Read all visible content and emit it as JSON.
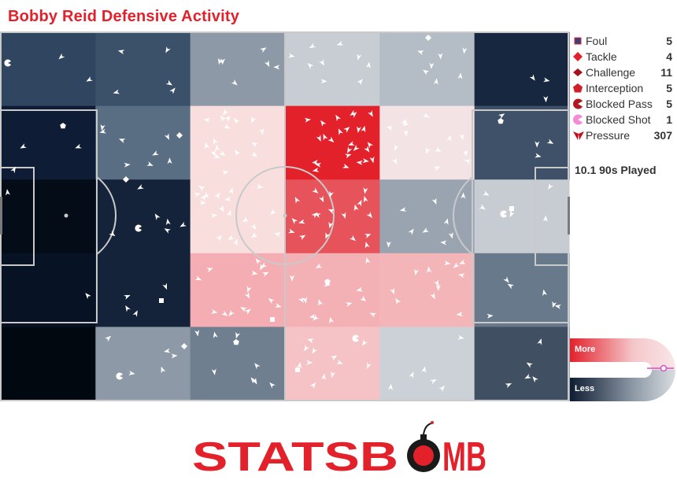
{
  "title": "Bobby Reid Defensive Activity",
  "played_label": "10.1 90s Played",
  "legend": [
    {
      "id": "foul",
      "label": "Foul",
      "count": "5",
      "icon": "square-icon",
      "color": "#3a3f7a"
    },
    {
      "id": "tackle",
      "label": "Tackle",
      "count": "4",
      "icon": "diamond-icon",
      "color": "#e3212b"
    },
    {
      "id": "challenge",
      "label": "Challenge",
      "count": "11",
      "icon": "rhombus-icon",
      "color": "#a8121d"
    },
    {
      "id": "interception",
      "label": "Interception",
      "count": "5",
      "icon": "pentagon-icon",
      "color": "#d11f2a"
    },
    {
      "id": "blocked_pass",
      "label": "Blocked Pass",
      "count": "5",
      "icon": "pacman-icon",
      "color": "#b01822"
    },
    {
      "id": "blocked_shot",
      "label": "Blocked Shot",
      "count": "1",
      "icon": "pacman-icon",
      "color": "#f58ad6"
    },
    {
      "id": "pressure",
      "label": "Pressure",
      "count": "307",
      "icon": "arrowhead-icon",
      "color": "#c0101a"
    }
  ],
  "scale": {
    "more_label": "More",
    "less_label": "Less"
  },
  "brand": {
    "text_left": "STATSB",
    "text_right": "MB",
    "color": "#e3212b"
  },
  "chart_data": {
    "type": "heatmap",
    "title": "Bobby Reid Defensive Activity",
    "grid_columns": 6,
    "grid_rows": 5,
    "cell_colors": [
      [
        "#2f4560",
        "#3b5069",
        "#8d99a6",
        "#c8cdd3",
        "#b4bcc5",
        "#17273f"
      ],
      [
        "#0e1d35",
        "#5a6e83",
        "#f9dede",
        "#e3212b",
        "#f4e3e5",
        "#3e5168"
      ],
      [
        "#040c18",
        "#14223a",
        "#f9dede",
        "#e6535b",
        "#99a4b0",
        "#c6ccd2"
      ],
      [
        "#071224",
        "#14223a",
        "#f4aeb3",
        "#f3b1b5",
        "#f4b5b9",
        "#68798b"
      ],
      [
        "#020810",
        "#8d99a6",
        "#6f7f90",
        "#f5c3c6",
        "#cbd1d6",
        "#404f62"
      ]
    ]
  }
}
